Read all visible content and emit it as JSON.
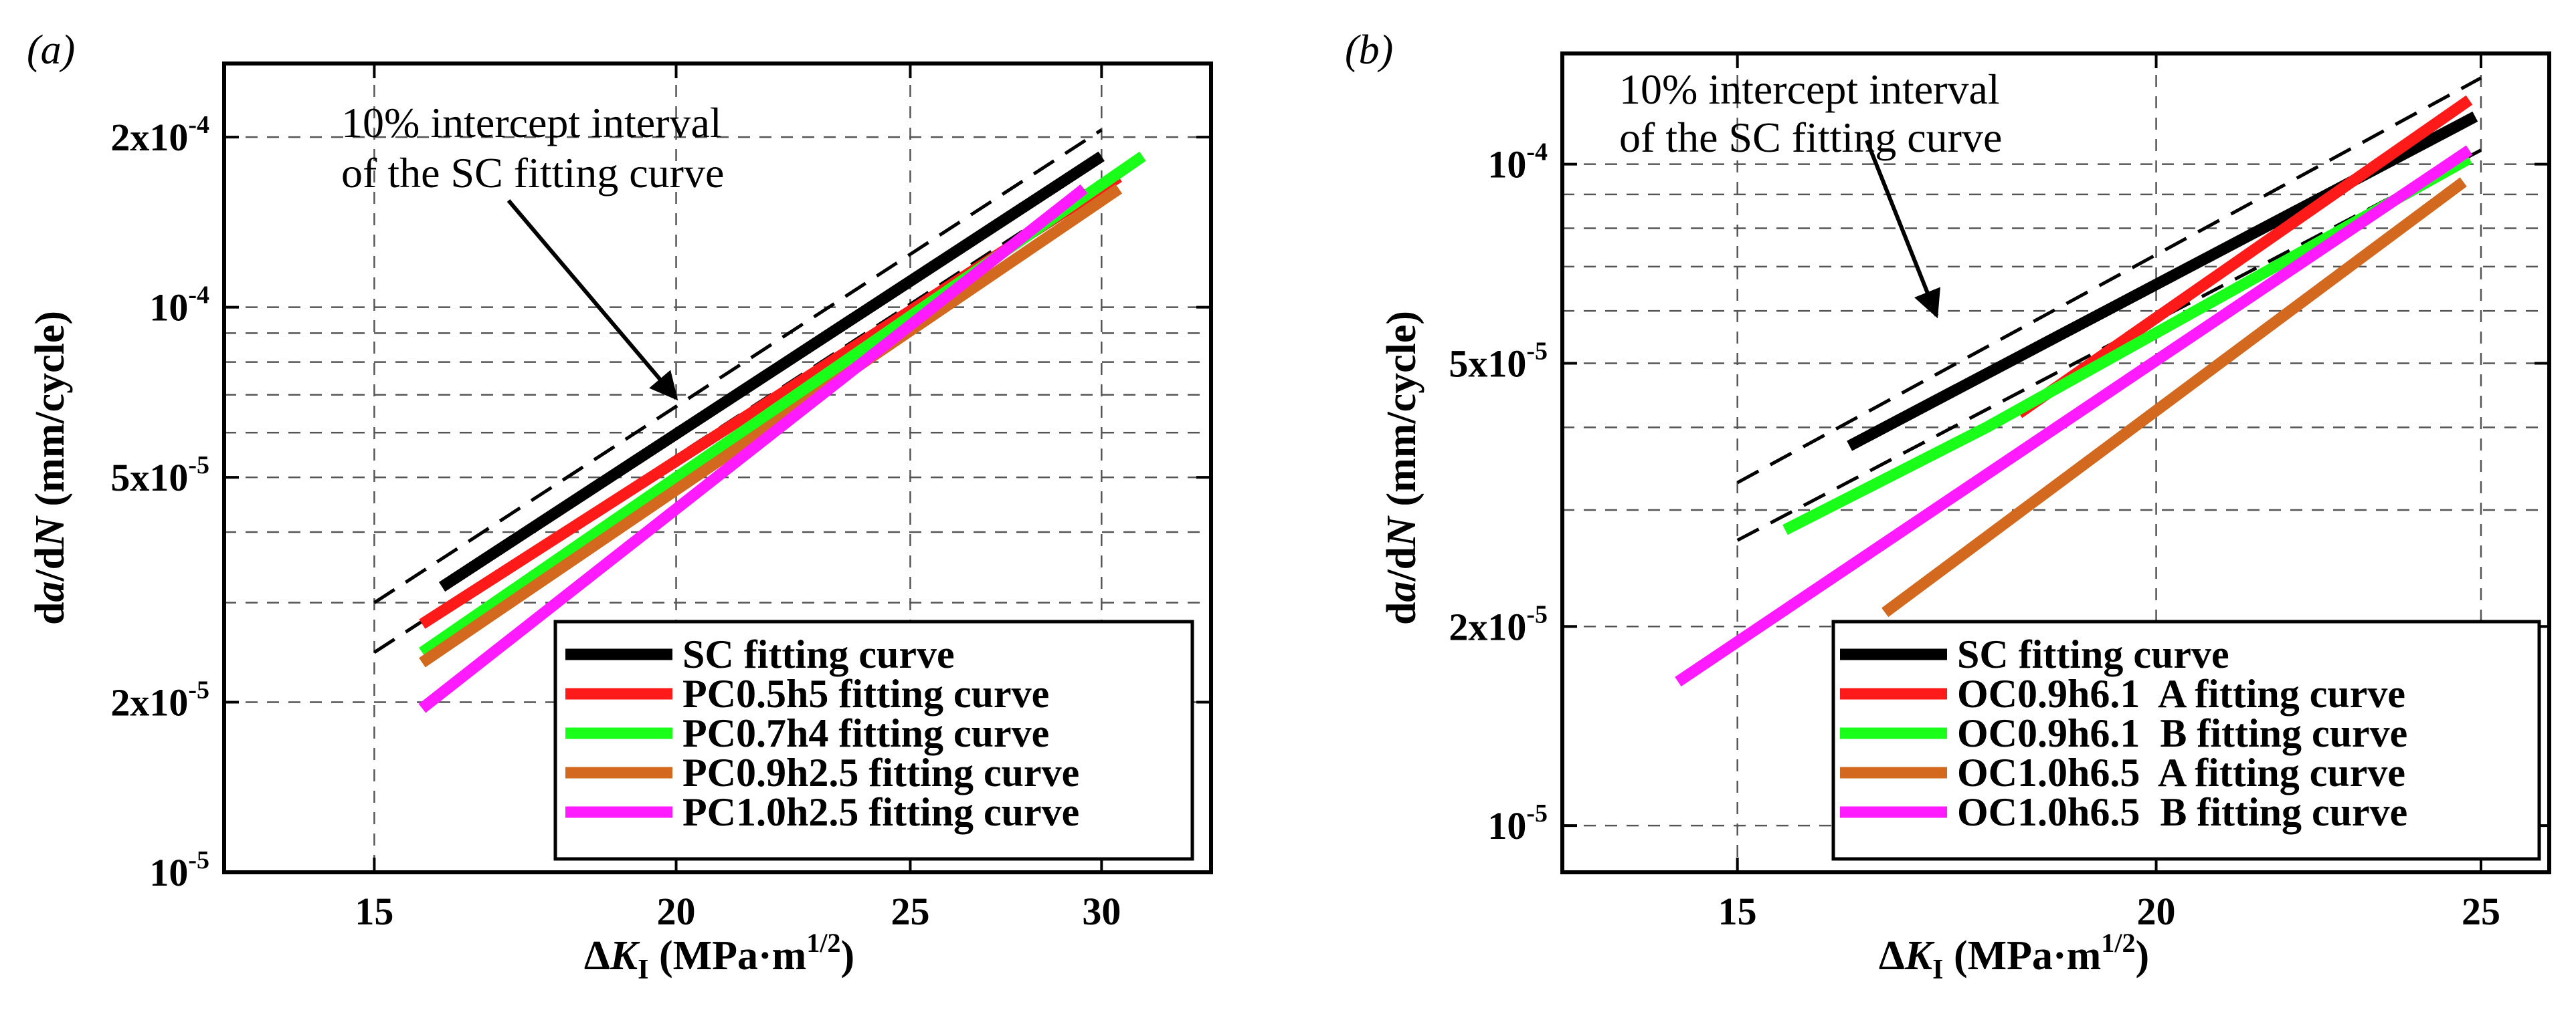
{
  "chart_data": [
    {
      "panel_label": "(a)",
      "type": "line",
      "xscale": "log",
      "yscale": "log",
      "xlim": [
        13,
        33.3
      ],
      "ylim": [
        1e-05,
        0.00027
      ],
      "xlabel": {
        "prefix": "Δ",
        "main": "K",
        "sub": "I",
        "units": " (MPa·m",
        "sup": "1/2",
        "close": ")"
      },
      "ylabel": {
        "pre": "d",
        "it1": "a",
        "mid": "/d",
        "it2": "N",
        "post": " (mm/cycle)"
      },
      "xticks": [
        {
          "value": 15,
          "label": "15"
        },
        {
          "value": 20,
          "label": "20"
        },
        {
          "value": 25,
          "label": "25"
        },
        {
          "value": 30,
          "label": "30"
        }
      ],
      "yticks": [
        {
          "value": 0.0002,
          "mant": "2x10",
          "exp": "-4"
        },
        {
          "value": 0.0001,
          "mant": "10",
          "exp": "-4"
        },
        {
          "value": 5e-05,
          "mant": "5x10",
          "exp": "-5"
        },
        {
          "value": 2e-05,
          "mant": "2x10",
          "exp": "-5"
        },
        {
          "value": 1e-05,
          "mant": "10",
          "exp": "-5"
        }
      ],
      "y_grid": [
        1e-05,
        2e-05,
        3e-05,
        4e-05,
        5e-05,
        6e-05,
        7e-05,
        8e-05,
        9e-05,
        0.0001,
        0.0002
      ],
      "x_grid": [
        15,
        20,
        25,
        30
      ],
      "annotation": {
        "lines": [
          "10% intercept interval",
          "of the SC fitting curve"
        ],
        "arrow_to": [
          20.0,
          6.9e-05
        ]
      },
      "band": {
        "upper": [
          [
            15.0,
            3e-05
          ],
          [
            30.0,
            0.000206
          ]
        ],
        "lower": [
          [
            15.0,
            2.45e-05
          ],
          [
            30.0,
            0.000168
          ]
        ]
      },
      "legend_position": "lower-right",
      "series": [
        {
          "name": "SC fitting curve",
          "color": "#000000",
          "points": [
            [
              16.0,
              3.2e-05
            ],
            [
              30.0,
              0.000185
            ]
          ]
        },
        {
          "name": "PC0.5h5 fitting curve",
          "color": "#ff1a1a",
          "points": [
            [
              15.7,
              2.75e-05
            ],
            [
              30.5,
              0.00017
            ]
          ]
        },
        {
          "name": "PC0.7h4 fitting curve",
          "color": "#1aff1a",
          "points": [
            [
              15.7,
              2.45e-05
            ],
            [
              31.2,
              0.000185
            ]
          ]
        },
        {
          "name": "PC0.9h2.5 fitting curve",
          "color": "#d2691e",
          "points": [
            [
              15.7,
              2.35e-05
            ],
            [
              30.5,
              0.000162
            ]
          ]
        },
        {
          "name": "PC1.0h2.5 fitting curve",
          "color": "#ff1aff",
          "points": [
            [
              15.7,
              1.95e-05
            ],
            [
              29.5,
              0.000162
            ]
          ]
        }
      ]
    },
    {
      "panel_label": "(b)",
      "type": "line",
      "xscale": "log",
      "yscale": "log",
      "xlim": [
        13.3,
        26.2
      ],
      "ylim": [
        8.5e-06,
        0.000147
      ],
      "xlabel": {
        "prefix": "Δ",
        "main": "K",
        "sub": "I",
        "units": " (MPa·m",
        "sup": "1/2",
        "close": ")"
      },
      "ylabel": {
        "pre": "d",
        "it1": "a",
        "mid": "/d",
        "it2": "N",
        "post": " (mm/cycle)"
      },
      "xticks": [
        {
          "value": 15,
          "label": "15"
        },
        {
          "value": 20,
          "label": "20"
        },
        {
          "value": 25,
          "label": "25"
        }
      ],
      "yticks": [
        {
          "value": 0.0001,
          "mant": "10",
          "exp": "-4"
        },
        {
          "value": 5e-05,
          "mant": "5x10",
          "exp": "-5"
        },
        {
          "value": 2e-05,
          "mant": "2x10",
          "exp": "-5"
        },
        {
          "value": 1e-05,
          "mant": "10",
          "exp": "-5"
        }
      ],
      "y_grid": [
        1e-05,
        2e-05,
        3e-05,
        4e-05,
        5e-05,
        6e-05,
        7e-05,
        8e-05,
        9e-05,
        0.0001
      ],
      "x_grid": [
        15,
        20,
        25
      ],
      "annotation": {
        "lines": [
          "10% intercept interval",
          "of the SC fitting curve"
        ],
        "arrow_to": [
          17.2,
          5.9e-05
        ]
      },
      "band": {
        "upper": [
          [
            15.0,
            3.3e-05
          ],
          [
            25.0,
            0.000135
          ]
        ],
        "lower": [
          [
            15.0,
            2.7e-05
          ],
          [
            25.0,
            0.000105
          ]
        ]
      },
      "legend_position": "lower-right",
      "series": [
        {
          "name": "SC fitting curve",
          "color": "#000000",
          "points": [
            [
              16.2,
              3.75e-05
            ],
            [
              24.9,
              0.000118
            ]
          ]
        },
        {
          "name": "OC0.9h6.1  A fitting curve",
          "color": "#ff1a1a",
          "points": [
            [
              18.2,
              4.2e-05
            ],
            [
              24.8,
              0.000125
            ]
          ]
        },
        {
          "name": "OC0.9h6.1  B fitting curve",
          "color": "#1aff1a",
          "points": [
            [
              15.5,
              2.8e-05
            ],
            [
              17.8,
              4e-05
            ],
            [
              24.8,
              0.000102
            ]
          ]
        },
        {
          "name": "OC1.0h6.5  A fitting curve",
          "color": "#d2691e",
          "points": [
            [
              16.6,
              2.1e-05
            ],
            [
              24.7,
              9.4e-05
            ]
          ]
        },
        {
          "name": "OC1.0h6.5  B fitting curve",
          "color": "#ff1aff",
          "points": [
            [
              14.4,
              1.65e-05
            ],
            [
              24.8,
              0.000105
            ]
          ]
        }
      ]
    }
  ]
}
